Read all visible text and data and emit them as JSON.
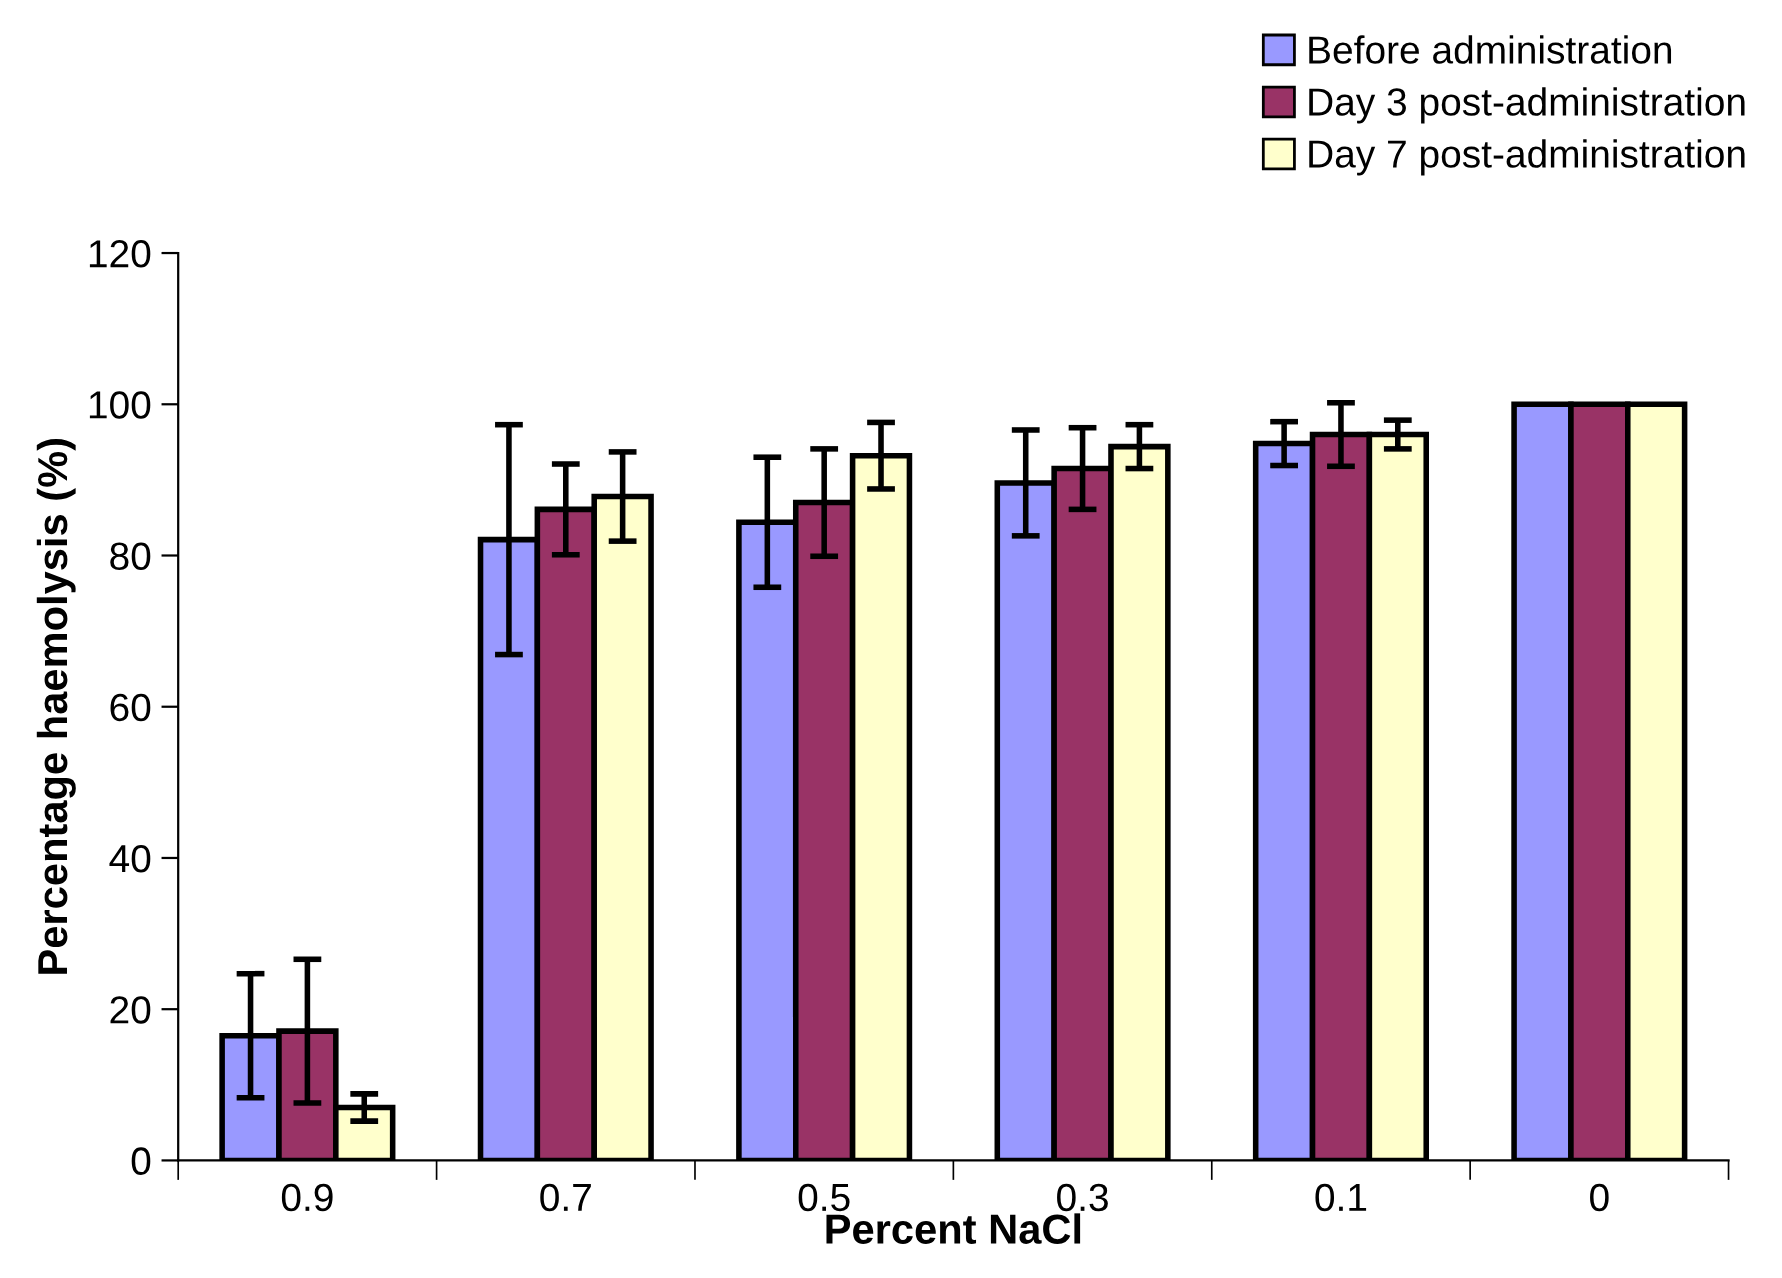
{
  "chart_data": {
    "type": "bar",
    "xlabel": "Percent NaCl",
    "ylabel": "Percentage haemolysis (%)",
    "categories": [
      "0.9",
      "0.7",
      "0.5",
      "0.3",
      "0.1",
      "0"
    ],
    "series": [
      {
        "name": "Before administration",
        "color": "#9999ff",
        "values": [
          16.5,
          82.1,
          84.4,
          89.6,
          94.8,
          100
        ],
        "errors": [
          8.2,
          15.2,
          8.6,
          7,
          2.9,
          null
        ]
      },
      {
        "name": "Day 3 post-administration",
        "color": "#993366",
        "values": [
          17.1,
          86.1,
          87.0,
          91.5,
          96.0,
          100
        ],
        "errors": [
          9.5,
          6,
          7.1,
          5.4,
          4.2,
          null
        ]
      },
      {
        "name": "Day 7 post-administration",
        "color": "#ffffcc",
        "values": [
          7.0,
          87.8,
          93.2,
          94.4,
          96.0,
          100
        ],
        "errors": [
          1.8,
          5.9,
          4.4,
          2.9,
          1.9,
          null
        ]
      }
    ],
    "ylim": [
      0,
      120
    ],
    "yticks": [
      0,
      20,
      40,
      60,
      80,
      100,
      120
    ],
    "grid": false,
    "legend": "top right"
  }
}
